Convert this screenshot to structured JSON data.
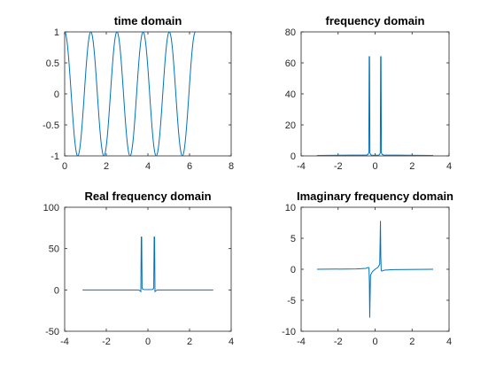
{
  "chart_data": [
    {
      "type": "line",
      "title": "time domain",
      "xlim": [
        0,
        8
      ],
      "ylim": [
        -1,
        1
      ],
      "xticks": [
        "0",
        "2",
        "4",
        "6",
        "8"
      ],
      "yticks": [
        "-1",
        "-0.5",
        "0",
        "0.5",
        "1"
      ],
      "series": [
        {
          "color": "#0072BD",
          "function": "cos(5t)",
          "x_range": [
            0,
            6.28
          ]
        }
      ],
      "grid": false
    },
    {
      "type": "line",
      "title": "frequency domain",
      "xlim": [
        -4,
        4
      ],
      "ylim": [
        0,
        80
      ],
      "xticks": [
        "-4",
        "-2",
        "0",
        "2",
        "4"
      ],
      "yticks": [
        "0",
        "20",
        "40",
        "60",
        "80"
      ],
      "series": [
        {
          "color": "#0072BD",
          "x": [
            -3.14,
            -0.45,
            -0.38,
            -0.34,
            -0.32,
            -0.3,
            -0.28,
            -0.25,
            -0.2,
            0,
            0.2,
            0.25,
            0.28,
            0.3,
            0.32,
            0.34,
            0.38,
            0.45,
            3.14
          ],
          "y": [
            0.3,
            0.6,
            1,
            2,
            64,
            64,
            2,
            1,
            0.5,
            0.4,
            0.5,
            1,
            2,
            64,
            64,
            2,
            1,
            0.6,
            0.3
          ]
        }
      ],
      "grid": false
    },
    {
      "type": "line",
      "title": "Real frequency domain",
      "xlim": [
        -4,
        4
      ],
      "ylim": [
        -50,
        100
      ],
      "xticks": [
        "-4",
        "-2",
        "0",
        "2",
        "4"
      ],
      "yticks": [
        "-50",
        "0",
        "50",
        "100"
      ],
      "series": [
        {
          "color": "#0072BD",
          "x": [
            -3.14,
            -0.45,
            -0.38,
            -0.34,
            -0.32,
            -0.3,
            -0.28,
            -0.25,
            -0.2,
            0,
            0.2,
            0.25,
            0.28,
            0.3,
            0.32,
            0.34,
            0.38,
            0.45,
            3.14
          ],
          "y": [
            0,
            0,
            -1,
            -2,
            64,
            64,
            2,
            1,
            0.5,
            0.3,
            0.5,
            1,
            2,
            64,
            64,
            -2,
            -1,
            0,
            0
          ]
        }
      ],
      "grid": false
    },
    {
      "type": "line",
      "title": "Imaginary frequency domain",
      "xlim": [
        -4,
        4
      ],
      "ylim": [
        -10,
        10
      ],
      "xticks": [
        "-4",
        "-2",
        "0",
        "2",
        "4"
      ],
      "yticks": [
        "-10",
        "-5",
        "0",
        "5",
        "10"
      ],
      "series": [
        {
          "color": "#0072BD",
          "x": [
            -3.14,
            -1.0,
            -0.5,
            -0.36,
            -0.33,
            -0.31,
            -0.29,
            -0.25,
            -0.15,
            0,
            0.15,
            0.25,
            0.29,
            0.31,
            0.33,
            0.36,
            0.5,
            1.0,
            3.14
          ],
          "y": [
            0,
            0.05,
            0.15,
            0.3,
            0.2,
            -2,
            -7.8,
            -1,
            -0.4,
            0,
            0.3,
            0.8,
            7.8,
            2,
            -0.2,
            -0.3,
            -0.15,
            -0.05,
            0
          ]
        }
      ],
      "grid": false
    }
  ]
}
